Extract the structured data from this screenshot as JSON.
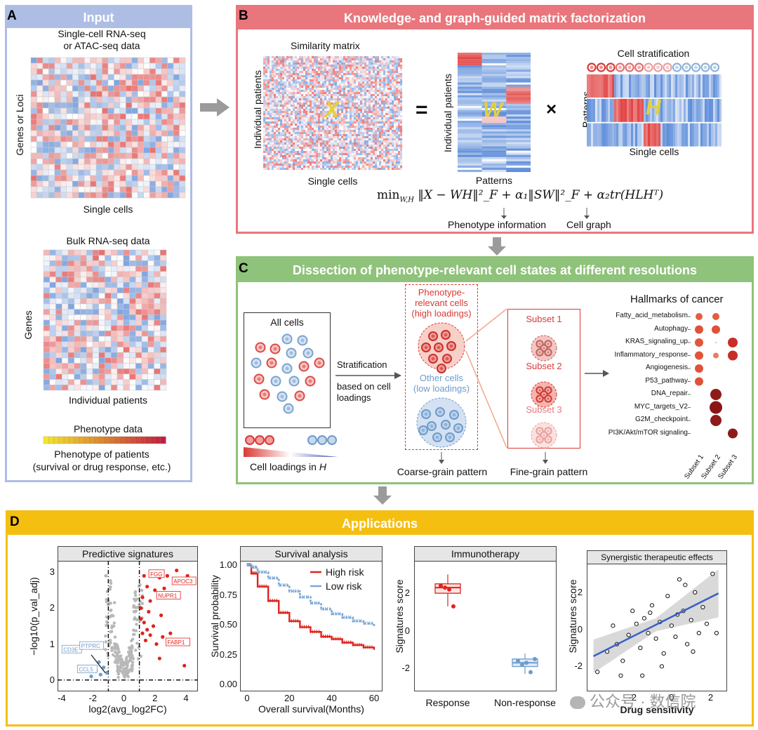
{
  "colors": {
    "panel_a": "#aebde3",
    "panel_b": "#e9767d",
    "panel_c": "#8fc27a",
    "panel_d": "#f5bf11",
    "red": "#d93a36",
    "blue": "#6e9ccc",
    "arrow": "#9b9b9b"
  },
  "panel_a": {
    "letter": "A",
    "title": "Input",
    "sc_title_line1": "Single-cell RNA-seq",
    "sc_title_line2": "or ATAC-seq data",
    "sc_ylabel": "Genes or Loci",
    "sc_xlabel": "Single cells",
    "bulk_title": "Bulk RNA-seq data",
    "bulk_ylabel": "Genes",
    "bulk_xlabel": "Individual patients",
    "pheno_title": "Phenotype data",
    "pheno_line1": "Phenotype of patients",
    "pheno_line2": "(survival or drug response, etc.)"
  },
  "panel_b": {
    "letter": "B",
    "title": "Knowledge- and graph-guided matrix factorization",
    "sim_title": "Similarity matrix",
    "sim_ylabel": "Individual patients",
    "sim_xlabel": "Single cells",
    "x_symbol": "X",
    "eq_symbol": "=",
    "w_ylabel": "Individual patients",
    "w_xlabel": "Patterns",
    "w_symbol": "W",
    "times_symbol": "×",
    "h_title": "Cell stratification",
    "h_ylabel": "Patterns",
    "h_xlabel": "Single cells",
    "h_symbol": "H",
    "formula_min": "min",
    "formula_sub": "W,H",
    "formula_body": "‖X − WH‖²_F + α₁‖SW‖²_F + α₂tr(HLHᵀ)",
    "phenotype_info": "Phenotype information",
    "cell_graph": "Cell graph"
  },
  "panel_c": {
    "letter": "C",
    "title": "Dissection of phenotype-relevant cell states at different resolutions",
    "all_cells": "All cells",
    "strat_label": "Stratification",
    "strat_line2": "based on cell",
    "strat_line3": "loadings",
    "loadings_label": "Cell loadings in ",
    "loadings_h": "H",
    "pheno_rel_line1": "Phenotype-",
    "pheno_rel_line2": "relevant cells",
    "pheno_rel_line3": "(high loadings)",
    "other_line1": "Other cells",
    "other_line2": "(low loadings)",
    "subsets": [
      "Subset 1",
      "Subset 2",
      "Subset 3"
    ],
    "coarse": "Coarse-grain pattern",
    "fine": "Fine-grain pattern",
    "hallmarks_title": "Hallmarks of cancer",
    "hallmarks": [
      "Fatty_acid_metabolism",
      "Autophagy",
      "KRAS_signaling_up",
      "Inflammatory_response",
      "Angiogenesis",
      "P53_pathway",
      "DNA_repair",
      "MYC_targets_V2",
      "G2M_checkpoint",
      "PI3K/Akt/mTOR signaling"
    ],
    "hallmark_cols": [
      "Subset 1",
      "Subset 2",
      "Subset 3"
    ]
  },
  "panel_d": {
    "letter": "D",
    "title": "Applications",
    "volcano": {
      "header": "Predictive signatures",
      "xlabel": "log2(avg_log2FC)",
      "ylabel": "−log10(p_val_adj)",
      "xticks": [
        "-4",
        "-2",
        "0",
        "2",
        "4"
      ],
      "yticks": [
        "0",
        "1",
        "2",
        "3"
      ],
      "red_labels": [
        "FGG",
        "APOC3",
        "NUPR1",
        "FABP1"
      ],
      "blue_labels": [
        "CD3E",
        "PTPRC",
        "CCL5"
      ]
    },
    "survival": {
      "header": "Survival analysis",
      "xlabel": "Overall survival(Months)",
      "ylabel": "Survival probability",
      "xticks": [
        "0",
        "20",
        "40",
        "60"
      ],
      "yticks": [
        "0.00",
        "0.25",
        "0.50",
        "0.75",
        "1.00"
      ],
      "legend": [
        "High risk",
        "Low risk"
      ]
    },
    "immuno": {
      "header": "Immunotherapy",
      "ylabel": "Signatures score",
      "yticks": [
        "-2",
        "0",
        "2"
      ],
      "xcats": [
        "Response",
        "Non-response"
      ]
    },
    "synergy": {
      "header": "Synergistic therapeutic effects",
      "ylabel": "Signatures score",
      "xlabel": "Drug sensitivity",
      "xticks": [
        "-2",
        "0",
        "2"
      ],
      "yticks": [
        "-2",
        "0",
        "2"
      ]
    },
    "watermark": "公众号 · 数信院"
  },
  "chart_data": [
    {
      "type": "scatter",
      "title": "Predictive signatures",
      "xlabel": "log2(avg_log2FC)",
      "ylabel": "-log10(p_val_adj)",
      "xlim": [
        -4,
        4.5
      ],
      "ylim": [
        -0.2,
        3.2
      ],
      "series": [
        {
          "name": "up",
          "points": [
            [
              1.3,
              2.9
            ],
            [
              1.8,
              3.0
            ],
            [
              2.3,
              2.85
            ],
            [
              2.8,
              2.9
            ],
            [
              3.4,
              3.05
            ],
            [
              4.1,
              2.9
            ],
            [
              1.5,
              2.6
            ],
            [
              2.0,
              2.5
            ],
            [
              2.6,
              2.55
            ],
            [
              3.3,
              2.4
            ],
            [
              1.2,
              2.3
            ],
            [
              1.7,
              2.2
            ],
            [
              2.2,
              2.35
            ],
            [
              1.1,
              2.0
            ],
            [
              1.6,
              1.9
            ],
            [
              2.4,
              1.8
            ],
            [
              1.3,
              1.6
            ],
            [
              1.9,
              1.5
            ],
            [
              1.2,
              1.3
            ],
            [
              1.7,
              1.25
            ],
            [
              2.5,
              1.2
            ],
            [
              1.4,
              1.1
            ],
            [
              2.1,
              1.0
            ],
            [
              3.0,
              1.3
            ],
            [
              2.3,
              0.6
            ],
            [
              3.9,
              0.4
            ],
            [
              1.1,
              1.7
            ],
            [
              1.5,
              1.4
            ]
          ]
        },
        {
          "name": "down",
          "points": [
            [
              -1.6,
              0.5
            ],
            [
              -1.3,
              0.35
            ],
            [
              -1.8,
              0.25
            ],
            [
              -1.1,
              0.2
            ],
            [
              -2.1,
              0.1
            ],
            [
              -1.5,
              0.15
            ]
          ]
        }
      ]
    },
    {
      "type": "line",
      "title": "Survival analysis",
      "xlabel": "Overall survival(Months)",
      "ylabel": "Survival probability",
      "xlim": [
        0,
        62
      ],
      "ylim": [
        0,
        1
      ],
      "x": [
        0,
        2,
        5,
        10,
        15,
        20,
        25,
        30,
        35,
        40,
        45,
        50,
        55,
        60
      ],
      "series": [
        {
          "name": "High risk",
          "values": [
            1.0,
            0.93,
            0.82,
            0.7,
            0.6,
            0.53,
            0.48,
            0.44,
            0.4,
            0.38,
            0.35,
            0.33,
            0.31,
            0.29
          ]
        },
        {
          "name": "Low risk",
          "values": [
            1.0,
            0.98,
            0.94,
            0.89,
            0.83,
            0.78,
            0.73,
            0.68,
            0.63,
            0.59,
            0.56,
            0.53,
            0.51,
            0.49
          ]
        }
      ]
    },
    {
      "type": "box",
      "title": "Immunotherapy",
      "ylabel": "Signatures score",
      "categories": [
        "Response",
        "Non-response"
      ],
      "ylim": [
        -3,
        3.5
      ],
      "series": [
        {
          "name": "Response",
          "q1": 2.0,
          "median": 2.3,
          "q3": 2.5,
          "min": 1.3,
          "max": 3.0,
          "points": [
            2.4,
            2.3,
            2.2,
            1.3
          ]
        },
        {
          "name": "Non-response",
          "q1": -1.9,
          "median": -1.7,
          "q3": -1.5,
          "min": -2.3,
          "max": -1.2,
          "points": [
            -1.6,
            -1.8,
            -1.7,
            -2.2,
            -1.5
          ]
        }
      ]
    },
    {
      "type": "scatter",
      "title": "Synergistic therapeutic effects",
      "xlabel": "Drug sensitivity",
      "ylabel": "Signatures score",
      "xlim": [
        -4.2,
        2.7
      ],
      "ylim": [
        -3.2,
        3.4
      ],
      "points": [
        [
          -3.8,
          -2.3
        ],
        [
          -3.3,
          -1.2
        ],
        [
          -3.0,
          0.2
        ],
        [
          -2.8,
          -0.8
        ],
        [
          -2.5,
          -1.7
        ],
        [
          -2.2,
          -0.3
        ],
        [
          -2.0,
          1.0
        ],
        [
          -1.8,
          0.3
        ],
        [
          -1.6,
          -1.0
        ],
        [
          -1.4,
          0.6
        ],
        [
          -1.2,
          -0.2
        ],
        [
          -1.0,
          1.3
        ],
        [
          -0.8,
          -0.5
        ],
        [
          -0.6,
          0.4
        ],
        [
          -0.4,
          -1.3
        ],
        [
          -0.2,
          1.8
        ],
        [
          0.0,
          0.2
        ],
        [
          0.2,
          -0.4
        ],
        [
          0.4,
          2.7
        ],
        [
          0.6,
          1.0
        ],
        [
          0.8,
          -0.8
        ],
        [
          1.0,
          0.5
        ],
        [
          1.2,
          2.0
        ],
        [
          1.4,
          -0.2
        ],
        [
          1.6,
          1.2
        ],
        [
          1.8,
          0.3
        ],
        [
          2.1,
          3.0
        ],
        [
          2.3,
          -0.2
        ],
        [
          -1.5,
          -2.5
        ],
        [
          -0.5,
          -2.0
        ],
        [
          0.3,
          0.8
        ],
        [
          1.1,
          -1.2
        ],
        [
          -2.6,
          -2.5
        ],
        [
          -1.1,
          0.9
        ],
        [
          0.7,
          2.4
        ]
      ],
      "fit": {
        "x": [
          -4.0,
          2.4
        ],
        "y": [
          -1.45,
          1.95
        ]
      }
    }
  ]
}
